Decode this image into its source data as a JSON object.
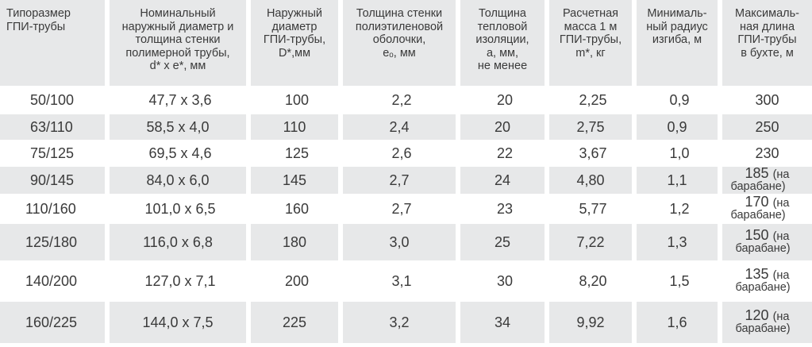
{
  "header": [
    "Типоразмер\nГПИ-трубы",
    "Номинальный\nнаружный диаметр и\nтолщина стенки\nполимерной трубы,\nd* х e*, мм",
    "Наружный\nдиаметр\nГПИ-трубы,\nD*,мм",
    "Толщина стенки\nполиэтиленовой\nоболочки,\neₒ, мм",
    "Толщина\nтепловой\nизоляции,\na, мм,\nне менее",
    "Расчетная\nмасса 1 м\nГПИ-трубы,\nm*, кг",
    "Минималь-\nный радиус\nизгиба, м",
    "Максималь-\nная длина\nГПИ-трубы\nв бухте, м"
  ],
  "rows": [
    [
      "50/100",
      "47,7 х 3,6",
      "100",
      "2,2",
      "20",
      "2,25",
      "0,9",
      "300",
      ""
    ],
    [
      "63/110",
      "58,5 х 4,0",
      "110",
      "2,4",
      "20",
      "2,75",
      "0,9",
      "250",
      ""
    ],
    [
      "75/125",
      "69,5 х 4,6",
      "125",
      "2,6",
      "22",
      "3,67",
      "1,0",
      "230",
      ""
    ],
    [
      "90/145",
      "84,0 х 6,0",
      "145",
      "2,7",
      "24",
      "4,80",
      "1,1",
      "185",
      "(на\nбарабане)"
    ],
    [
      "110/160",
      "101,0 х 6,5",
      "160",
      "2,7",
      "23",
      "5,77",
      "1,2",
      "170",
      "(на\nбарабане)"
    ],
    [
      "125/180",
      "116,0 х 6,8",
      "180",
      "3,0",
      "25",
      "7,22",
      "1,3",
      "150",
      "(на\nбарабане)"
    ],
    [
      "140/200",
      "127,0 х 7,1",
      "200",
      "3,1",
      "30",
      "8,20",
      "1,5",
      "135",
      "(на\nбарабане)"
    ],
    [
      "160/225",
      "144,0 х 7,5",
      "225",
      "3,2",
      "34",
      "9,92",
      "1,6",
      "120",
      "(на\nбарабане)"
    ]
  ]
}
